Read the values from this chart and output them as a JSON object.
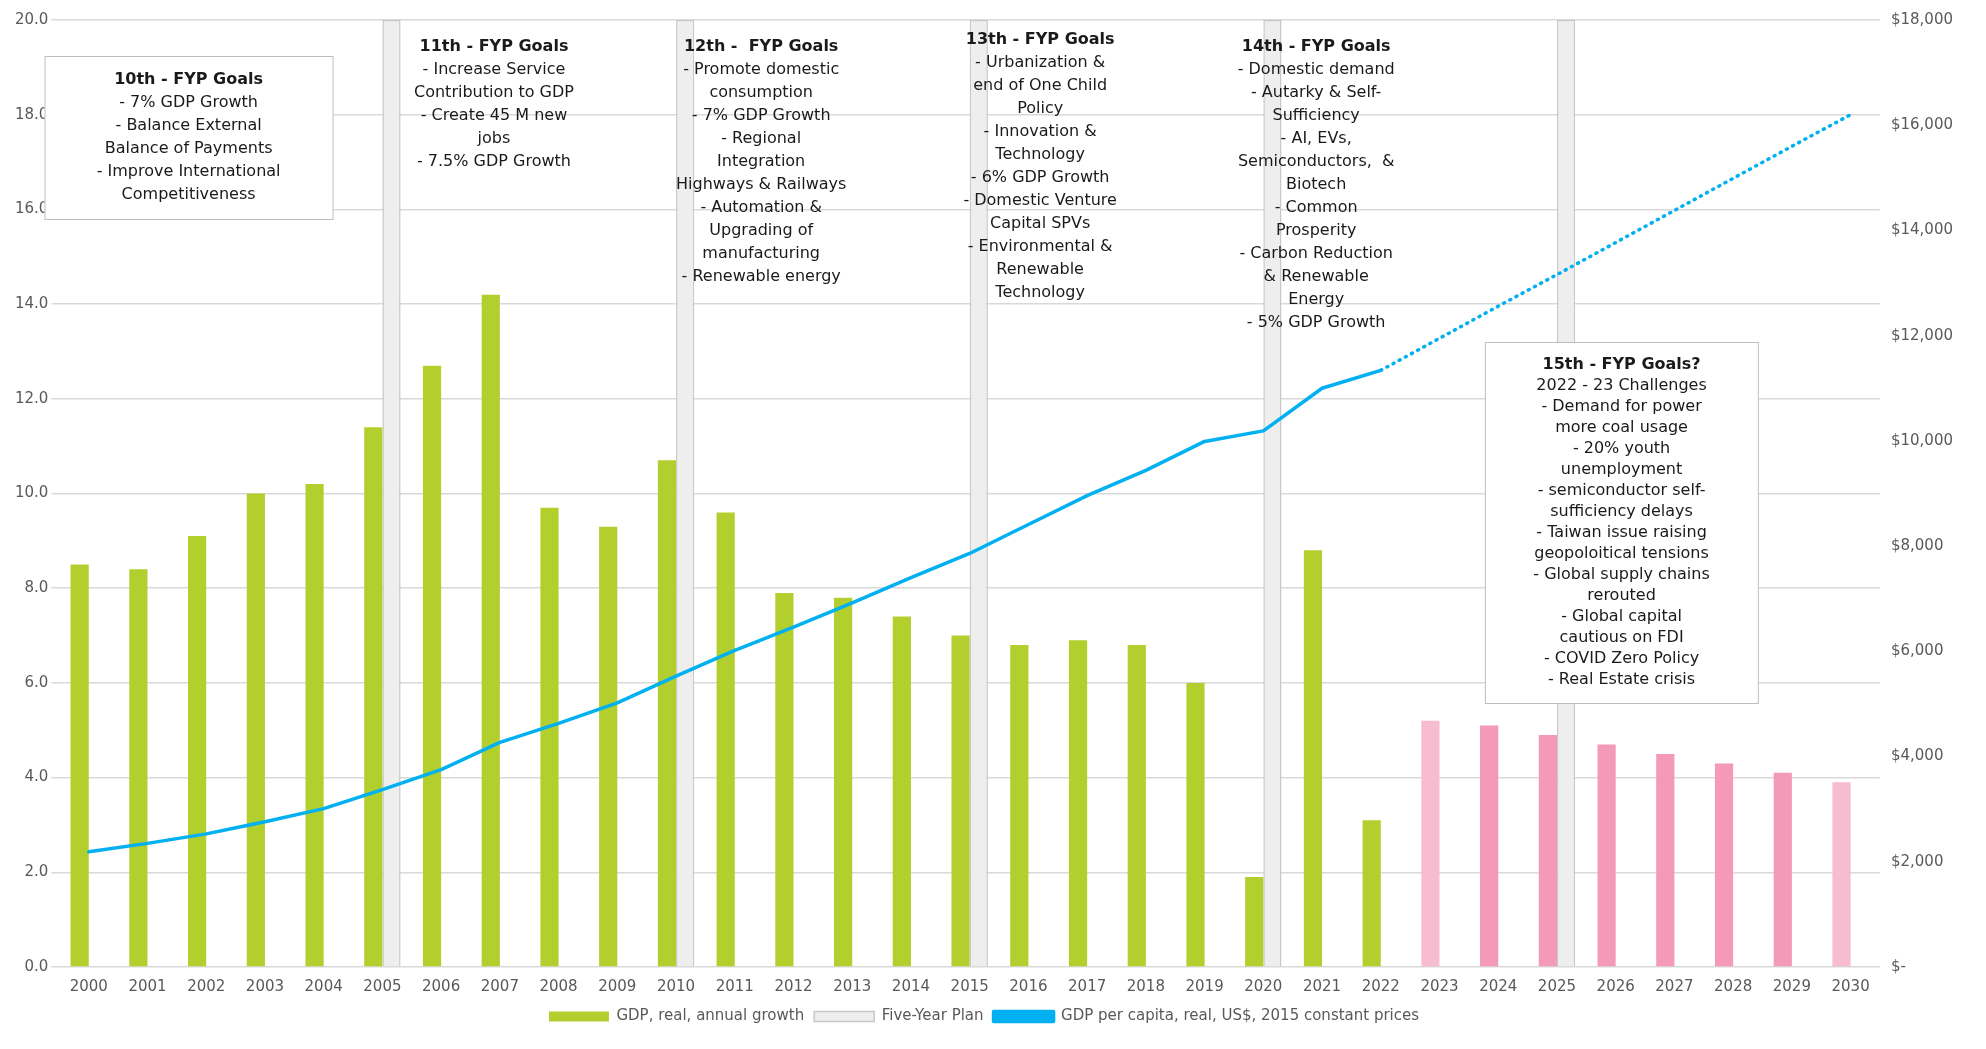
{
  "chart_data": {
    "type": "bar",
    "categories": [
      "2000",
      "2001",
      "2002",
      "2003",
      "2004",
      "2005",
      "2006",
      "2007",
      "2008",
      "2009",
      "2010",
      "2011",
      "2012",
      "2013",
      "2014",
      "2015",
      "2016",
      "2017",
      "2018",
      "2019",
      "2020",
      "2021",
      "2022",
      "2023",
      "2024",
      "2025",
      "2026",
      "2027",
      "2028",
      "2029",
      "2030"
    ],
    "series": [
      {
        "name": "GDP, real, annual growth",
        "colors": [
          "#b3cf2e",
          "#b3cf2e",
          "#b3cf2e",
          "#b3cf2e",
          "#b3cf2e",
          "#b3cf2e",
          "#b3cf2e",
          "#b3cf2e",
          "#b3cf2e",
          "#b3cf2e",
          "#b3cf2e",
          "#b3cf2e",
          "#b3cf2e",
          "#b3cf2e",
          "#b3cf2e",
          "#b3cf2e",
          "#b3cf2e",
          "#b3cf2e",
          "#b3cf2e",
          "#b3cf2e",
          "#b3cf2e",
          "#b3cf2e",
          "#b3cf2e",
          "#f7bcd0",
          "#f49ab8",
          "#f49ab8",
          "#f49ab8",
          "#f49ab8",
          "#f49ab8",
          "#f49ab8",
          "#f7bcd0"
        ],
        "values": [
          8.5,
          8.4,
          9.1,
          10.0,
          10.2,
          11.4,
          12.7,
          14.2,
          9.7,
          9.3,
          10.7,
          9.6,
          7.9,
          7.8,
          7.4,
          7.0,
          6.8,
          6.9,
          6.8,
          6.0,
          1.9,
          8.8,
          3.1,
          5.2,
          5.1,
          4.9,
          4.7,
          4.5,
          4.3,
          4.1,
          3.9
        ]
      },
      {
        "name": "Five-Year Plan",
        "color": "#eeeeee",
        "values": [
          null,
          null,
          null,
          null,
          null,
          20,
          null,
          null,
          null,
          null,
          20,
          null,
          null,
          null,
          null,
          20,
          null,
          null,
          null,
          null,
          20,
          null,
          null,
          null,
          null,
          20,
          null,
          null,
          null,
          null,
          null
        ]
      },
      {
        "name": "GDP per capita, real, US$, 2015 constant prices",
        "type": "line",
        "axis": "y2",
        "color": "#00b0f0",
        "line_style": "solid",
        "values": [
          2190,
          2350,
          2530,
          2760,
          3010,
          3370,
          3750,
          4270,
          4630,
          5020,
          5530,
          6020,
          6460,
          6920,
          7400,
          7860,
          8410,
          8960,
          9440,
          9990,
          10190,
          11000,
          11340,
          null,
          null,
          null,
          null,
          null,
          null,
          null,
          null
        ]
      },
      {
        "type": "line",
        "axis": "y2",
        "color": "#00b0f0",
        "line_style": "dotted",
        "values": [
          null,
          null,
          null,
          null,
          null,
          null,
          null,
          null,
          null,
          null,
          null,
          null,
          null,
          null,
          null,
          null,
          null,
          null,
          null,
          null,
          null,
          null,
          11340,
          11950,
          12560,
          13160,
          13770,
          14380,
          14990,
          15600,
          16200
        ]
      }
    ],
    "ylim": [
      0,
      20
    ],
    "yticks": [
      {
        "value": 0,
        "label": "0.0"
      },
      {
        "value": 2,
        "label": "2.0"
      },
      {
        "value": 4,
        "label": "4.0"
      },
      {
        "value": 6,
        "label": "6.0"
      },
      {
        "value": 8,
        "label": "8.0"
      },
      {
        "value": 10,
        "label": "10.0"
      },
      {
        "value": 12,
        "label": "12.0"
      },
      {
        "value": 14,
        "label": "14.0"
      },
      {
        "value": 16,
        "label": "16.0"
      },
      {
        "value": 18,
        "label": "18.0"
      },
      {
        "value": 20,
        "label": "20.0"
      }
    ],
    "y2lim": [
      0,
      18000
    ],
    "y2ticks": [
      {
        "value": 0,
        "label": "$-"
      },
      {
        "value": 2000,
        "label": "$2,000"
      },
      {
        "value": 4000,
        "label": "$4,000"
      },
      {
        "value": 6000,
        "label": "$6,000"
      },
      {
        "value": 8000,
        "label": "$8,000"
      },
      {
        "value": 10000,
        "label": "$10,000"
      },
      {
        "value": 12000,
        "label": "$12,000"
      },
      {
        "value": 14000,
        "label": "$14,000"
      },
      {
        "value": 16000,
        "label": "$16,000"
      },
      {
        "value": 18000,
        "label": "$18,000"
      }
    ],
    "grid": "y",
    "legend": "bottom",
    "marker": "none",
    "annotations": [
      "10th - FYP Goals\n- 7% GDP Growth\n- Balance External\nBalance of Payments\n- Improve International\nCompetitiveness",
      "11th - FYP Goals\n- Increase Service\nContribution to GDP\n- Create 45 M new\njobs\n- 7.5% GDP Growth",
      "12th -  FYP Goals\n- Promote domestic\nconsumption\n- 7% GDP Growth\n- Regional\nIntegration\nHighways & Railways\n- Automation &\nUpgrading of\nmanufacturing\n- Renewable energy",
      "13th - FYP Goals\n- Urbanization &\nend of One Child\nPolicy\n- Innovation &\nTechnology\n- 6% GDP Growth\n- Domestic Venture\nCapital SPVs\n- Environmental &\nRenewable\nTechnology",
      "14th - FYP Goals\n- Domestic demand\n- Autarky & Self-\nSufficiency\n- AI, EVs,\nSemiconductors,  &\nBiotech\n- Common\nProsperity\n- Carbon Reduction\n& Renewable\nEnergy\n- 5% GDP Growth",
      "15th - FYP Goals?\n2022 - 23 Challenges\n- Demand for power\nmore coal usage\n- 20% youth\nunemployment\n- semiconductor self-\nsufficiency delays\n- Taiwan issue raising\ngeopoloitical tensions\n- Global supply chains\nrerouted\n- Global capital\ncautious on FDI\n- COVID Zero Policy\n- Real Estate crisis"
    ]
  }
}
